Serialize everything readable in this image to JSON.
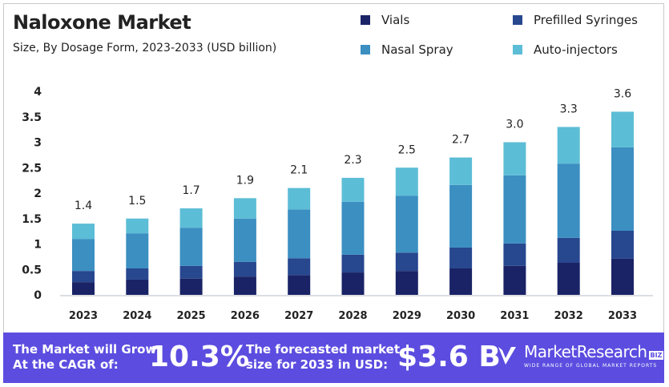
{
  "chart_data": {
    "type": "bar",
    "stacked": true,
    "title": "Naloxone Market",
    "subtitle": "Size, By Dosage Form, 2023-2033 (USD billion)",
    "categories": [
      "2023",
      "2024",
      "2025",
      "2026",
      "2027",
      "2028",
      "2029",
      "2030",
      "2031",
      "2032",
      "2033"
    ],
    "series": [
      {
        "name": "Vials",
        "color": "#1a2366",
        "values": [
          0.25,
          0.3,
          0.32,
          0.36,
          0.39,
          0.44,
          0.47,
          0.52,
          0.57,
          0.63,
          0.71
        ]
      },
      {
        "name": "Prefilled Syringes",
        "color": "#27478f",
        "values": [
          0.22,
          0.22,
          0.25,
          0.29,
          0.33,
          0.35,
          0.36,
          0.41,
          0.44,
          0.49,
          0.55
        ]
      },
      {
        "name": "Nasal Spray",
        "color": "#3b8fc1",
        "values": [
          0.63,
          0.69,
          0.75,
          0.85,
          0.96,
          1.04,
          1.12,
          1.23,
          1.34,
          1.46,
          1.64
        ]
      },
      {
        "name": "Auto-injectors",
        "color": "#5cbdd6",
        "values": [
          0.3,
          0.29,
          0.38,
          0.4,
          0.42,
          0.47,
          0.55,
          0.54,
          0.65,
          0.72,
          0.7
        ]
      }
    ],
    "totals": [
      "1.4",
      "1.5",
      "1.7",
      "1.9",
      "2.1",
      "2.3",
      "2.5",
      "2.7",
      "3.0",
      "3.3",
      "3.6"
    ],
    "yticks": [
      "0",
      "0.5",
      "1",
      "1.5",
      "2",
      "2.5",
      "3",
      "3.5",
      "4"
    ],
    "ylim": [
      0,
      4
    ],
    "grid": false,
    "legend": "top-right"
  },
  "banner": {
    "cagr_label": [
      "The Market will Grow",
      "At the CAGR of:"
    ],
    "cagr_value": "10.3%",
    "forecast_label": [
      "The forecasted market",
      "size for 2033 in USD:"
    ],
    "forecast_value": "$3.6 B",
    "logo_name": "MarketResearch",
    "logo_badge": "BIZ",
    "logo_tagline": "WIDE RANGE OF GLOBAL MARKET REPORTS",
    "background": "#5c4de0"
  }
}
